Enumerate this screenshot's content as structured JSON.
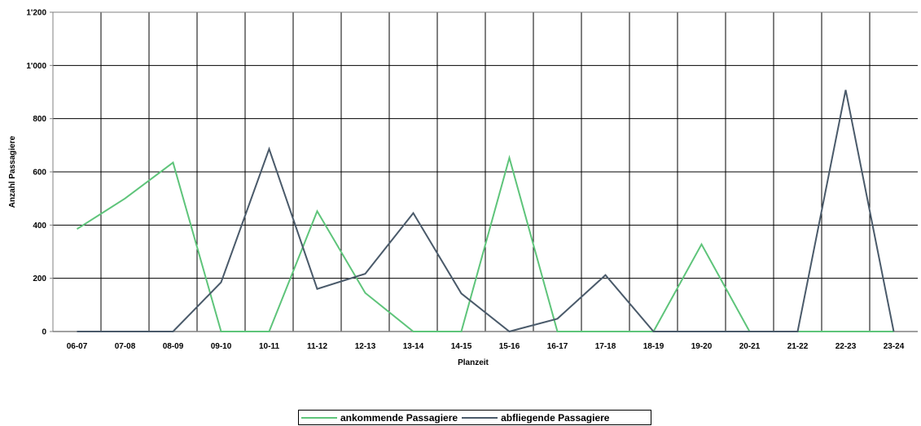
{
  "chart_data": {
    "type": "line",
    "title": "",
    "xlabel": "Planzeit",
    "ylabel": "Anzahl Passagiere",
    "categories": [
      "06-07",
      "07-08",
      "08-09",
      "09-10",
      "10-11",
      "11-12",
      "12-13",
      "13-14",
      "14-15",
      "15-16",
      "16-17",
      "17-18",
      "18-19",
      "19-20",
      "20-21",
      "21-22",
      "22-23",
      "23-24"
    ],
    "ylim": [
      0,
      1200
    ],
    "yticks": [
      0,
      200,
      400,
      600,
      800,
      1000,
      1200
    ],
    "ytick_labels": [
      "0",
      "200",
      "400",
      "600",
      "800",
      "1'000",
      "1'200"
    ],
    "grid": true,
    "legend_position": "bottom",
    "series": [
      {
        "name": "ankommende Passagiere",
        "color": "#5ec47a",
        "values": [
          385,
          500,
          635,
          0,
          0,
          452,
          145,
          0,
          0,
          653,
          0,
          0,
          0,
          328,
          0,
          0,
          0,
          0
        ]
      },
      {
        "name": "abfliegende Passagiere",
        "color": "#4a5a6a",
        "values": [
          0,
          0,
          0,
          185,
          686,
          160,
          217,
          445,
          143,
          0,
          48,
          212,
          0,
          0,
          0,
          0,
          908,
          0
        ]
      }
    ]
  }
}
